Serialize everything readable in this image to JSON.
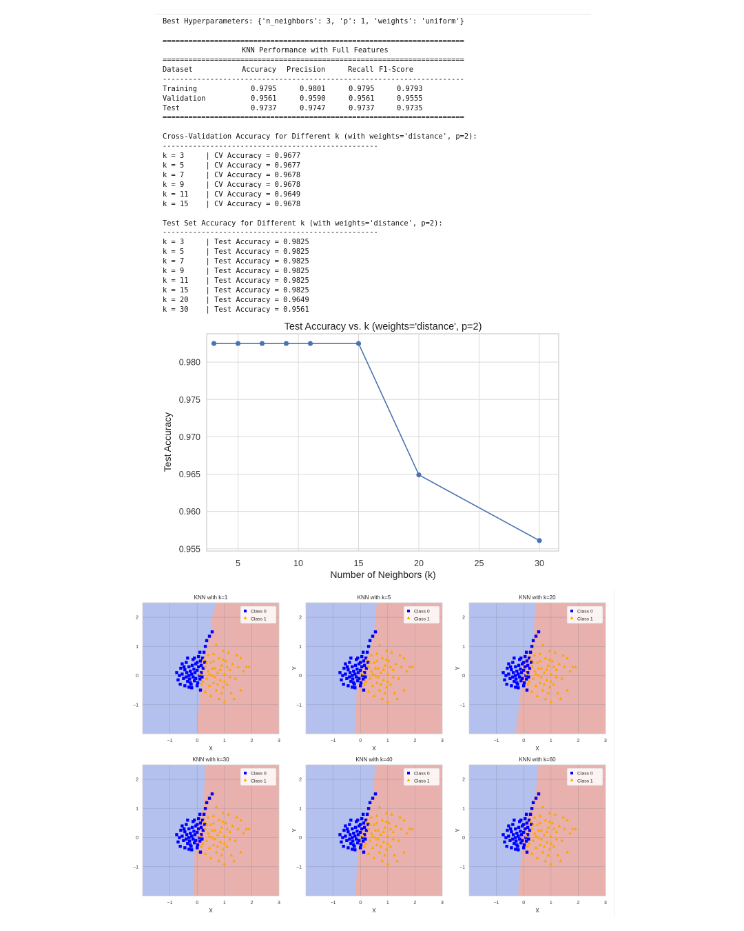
{
  "output": {
    "best_params_line": "Best Hyperparameters: {'n_neighbors': 3, 'p': 1, 'weights': 'uniform'}",
    "double_rule": "======================================================================",
    "single_rule": "----------------------------------------------------------------------",
    "short_rule": "--------------------------------------------------",
    "table_title": "KNN Performance with Full Features",
    "table_headers": [
      "Dataset",
      "Accuracy",
      "Precision",
      "Recall",
      "F1-Score"
    ],
    "table_rows": [
      [
        "Training",
        "0.9795",
        "0.9801",
        "0.9795",
        "0.9793"
      ],
      [
        "Validation",
        "0.9561",
        "0.9590",
        "0.9561",
        "0.9555"
      ],
      [
        "Test",
        "0.9737",
        "0.9747",
        "0.9737",
        "0.9735"
      ]
    ],
    "cv_title": "Cross-Validation Accuracy for Different k (with weights='distance', p=2):",
    "cv_lines": [
      "k = 3     | CV Accuracy = 0.9677",
      "k = 5     | CV Accuracy = 0.9677",
      "k = 7     | CV Accuracy = 0.9678",
      "k = 9     | CV Accuracy = 0.9678",
      "k = 11    | CV Accuracy = 0.9649",
      "k = 15    | CV Accuracy = 0.9678"
    ],
    "test_title": "Test Set Accuracy for Different k (with weights='distance', p=2):",
    "test_lines": [
      "k = 3     | Test Accuracy = 0.9825",
      "k = 5     | Test Accuracy = 0.9825",
      "k = 7     | Test Accuracy = 0.9825",
      "k = 9     | Test Accuracy = 0.9825",
      "k = 11    | Test Accuracy = 0.9825",
      "k = 15    | Test Accuracy = 0.9825",
      "k = 20    | Test Accuracy = 0.9649",
      "k = 30    | Test Accuracy = 0.9561"
    ]
  },
  "chart_data": [
    {
      "type": "line",
      "title": "Test Accuracy vs. k (weights='distance', p=2)",
      "xlabel": "Number of Neighbors (k)",
      "ylabel": "Test Accuracy",
      "x": [
        3,
        5,
        7,
        9,
        11,
        15,
        20,
        30
      ],
      "y": [
        0.9825,
        0.9825,
        0.9825,
        0.9825,
        0.9825,
        0.9825,
        0.9649,
        0.9561
      ],
      "xticks": [
        5,
        10,
        15,
        20,
        25,
        30
      ],
      "yticks": [
        0.955,
        0.96,
        0.965,
        0.97,
        0.975,
        0.98
      ],
      "ytick_labels": [
        "0.955",
        "0.960",
        "0.965",
        "0.970",
        "0.975",
        "0.980"
      ],
      "xlim": [
        2.4,
        31.6
      ],
      "ylim": [
        0.9547,
        0.9838
      ],
      "grid": true,
      "color": "#4c72b0"
    },
    {
      "type": "scatter",
      "subplots": [
        {
          "title": "KNN with k=1",
          "boundary": [
            [
              2.5,
              0.7
            ],
            [
              2.0,
              0.55
            ],
            [
              1.5,
              0.5
            ],
            [
              1.1,
              0.38
            ],
            [
              0.8,
              0.3
            ],
            [
              0.5,
              0.12
            ],
            [
              0.2,
              0.15
            ],
            [
              -0.2,
              0.2
            ],
            [
              -0.6,
              0.1
            ],
            [
              -1.0,
              0.08
            ],
            [
              -1.4,
              0.02
            ],
            [
              -1.9,
              0.0
            ]
          ]
        },
        {
          "title": "KNN with k=5",
          "boundary": [
            [
              2.5,
              0.6
            ],
            [
              2.0,
              0.55
            ],
            [
              1.5,
              0.5
            ],
            [
              1.1,
              0.4
            ],
            [
              0.8,
              0.33
            ],
            [
              0.5,
              0.15
            ],
            [
              0.2,
              0.0
            ],
            [
              -0.2,
              -0.05
            ],
            [
              -0.6,
              -0.15
            ],
            [
              -1.0,
              -0.15
            ],
            [
              -1.4,
              -0.2
            ],
            [
              -1.9,
              -0.2
            ]
          ]
        },
        {
          "title": "KNN with k=20",
          "boundary": [
            [
              2.5,
              0.45
            ],
            [
              2.0,
              0.4
            ],
            [
              1.5,
              0.38
            ],
            [
              1.1,
              0.3
            ],
            [
              0.8,
              0.2
            ],
            [
              0.5,
              0.0
            ],
            [
              0.2,
              -0.1
            ],
            [
              -0.2,
              -0.08
            ],
            [
              -0.6,
              -0.12
            ],
            [
              -1.0,
              -0.15
            ],
            [
              -1.4,
              -0.22
            ],
            [
              -1.9,
              -0.28
            ]
          ]
        },
        {
          "title": "KNN with k=30",
          "boundary": [
            [
              2.5,
              0.3
            ],
            [
              2.0,
              0.28
            ],
            [
              1.5,
              0.25
            ],
            [
              1.1,
              0.22
            ],
            [
              0.8,
              0.15
            ],
            [
              0.5,
              0.05
            ],
            [
              0.2,
              0.0
            ],
            [
              -0.2,
              -0.05
            ],
            [
              -0.6,
              -0.1
            ],
            [
              -1.0,
              -0.1
            ],
            [
              -1.4,
              -0.12
            ],
            [
              -1.9,
              -0.15
            ]
          ]
        },
        {
          "title": "KNN with k=40",
          "boundary": [
            [
              2.5,
              0.55
            ],
            [
              2.0,
              0.5
            ],
            [
              1.5,
              0.45
            ],
            [
              1.1,
              0.35
            ],
            [
              0.8,
              0.25
            ],
            [
              0.5,
              0.1
            ],
            [
              0.2,
              0.0
            ],
            [
              -0.2,
              -0.05
            ],
            [
              -0.6,
              -0.1
            ],
            [
              -1.0,
              -0.12
            ],
            [
              -1.4,
              -0.15
            ],
            [
              -1.9,
              -0.18
            ]
          ]
        },
        {
          "title": "KNN with k=60",
          "boundary": [
            [
              2.5,
              0.55
            ],
            [
              2.0,
              0.5
            ],
            [
              1.5,
              0.42
            ],
            [
              1.1,
              0.3
            ],
            [
              0.8,
              0.2
            ],
            [
              0.5,
              0.05
            ],
            [
              0.2,
              -0.05
            ],
            [
              -0.2,
              -0.08
            ],
            [
              -0.6,
              -0.1
            ],
            [
              -1.0,
              -0.12
            ],
            [
              -1.4,
              -0.15
            ],
            [
              -1.9,
              -0.2
            ]
          ]
        }
      ],
      "xlabel": "X",
      "ylabel": "Y",
      "xlim": [
        -2.0,
        3.0
      ],
      "ylim": [
        -2.0,
        2.5
      ],
      "xticks": [
        -1,
        0,
        1,
        2,
        3
      ],
      "yticks": [
        -1,
        0,
        1,
        2
      ],
      "legend": [
        "Class 0",
        "Class 1"
      ],
      "legend_placement": "top-right",
      "class_colors": {
        "class0": "#0000ff",
        "class1": "#ffa500"
      },
      "region_colors": {
        "class0": "#b4c0ee",
        "class1": "#e8b1ad"
      },
      "class0_points": [
        [
          -0.55,
          0.05
        ],
        [
          -0.5,
          -0.1
        ],
        [
          -0.45,
          0.2
        ],
        [
          -0.4,
          -0.05
        ],
        [
          -0.38,
          0.1
        ],
        [
          -0.35,
          -0.2
        ],
        [
          -0.3,
          0.3
        ],
        [
          -0.3,
          0.0
        ],
        [
          -0.28,
          -0.12
        ],
        [
          -0.25,
          0.15
        ],
        [
          -0.22,
          -0.3
        ],
        [
          -0.2,
          0.05
        ],
        [
          -0.18,
          0.35
        ],
        [
          -0.15,
          -0.05
        ],
        [
          -0.12,
          0.22
        ],
        [
          -0.1,
          -0.18
        ],
        [
          -0.08,
          0.1
        ],
        [
          -0.05,
          0.4
        ],
        [
          -0.05,
          -0.1
        ],
        [
          0.0,
          0.18
        ],
        [
          0.02,
          -0.25
        ],
        [
          0.05,
          0.3
        ],
        [
          0.08,
          0.0
        ],
        [
          0.1,
          -0.12
        ],
        [
          0.12,
          0.5
        ],
        [
          0.15,
          0.1
        ],
        [
          0.18,
          -0.05
        ],
        [
          0.2,
          0.6
        ],
        [
          0.22,
          0.25
        ],
        [
          0.25,
          0.8
        ],
        [
          0.3,
          1.0
        ],
        [
          0.35,
          1.2
        ],
        [
          0.45,
          1.35
        ],
        [
          0.55,
          1.5
        ],
        [
          -0.65,
          0.0
        ],
        [
          -0.7,
          -0.15
        ],
        [
          -0.6,
          0.25
        ],
        [
          -0.62,
          -0.3
        ],
        [
          -0.4,
          0.45
        ],
        [
          -0.3,
          -0.4
        ],
        [
          -0.15,
          0.55
        ],
        [
          0.0,
          -0.35
        ],
        [
          0.05,
          0.65
        ],
        [
          -0.45,
          -0.35
        ],
        [
          -0.55,
          0.4
        ],
        [
          -0.75,
          0.1
        ],
        [
          0.15,
          0.35
        ],
        [
          -0.2,
          -0.42
        ],
        [
          0.12,
          -0.5
        ],
        [
          -0.1,
          0.6
        ],
        [
          0.28,
          0.45
        ],
        [
          0.1,
          0.8
        ],
        [
          -0.35,
          0.6
        ],
        [
          0.0,
          0.45
        ],
        [
          -0.25,
          -0.25
        ],
        [
          -0.48,
          0.3
        ]
      ],
      "class1_points": [
        [
          0.1,
          0.05
        ],
        [
          0.2,
          -0.2
        ],
        [
          0.3,
          0.3
        ],
        [
          0.35,
          -0.1
        ],
        [
          0.4,
          0.15
        ],
        [
          0.45,
          -0.35
        ],
        [
          0.5,
          0.45
        ],
        [
          0.55,
          0.0
        ],
        [
          0.6,
          -0.25
        ],
        [
          0.65,
          0.25
        ],
        [
          0.7,
          -0.5
        ],
        [
          0.75,
          0.1
        ],
        [
          0.8,
          0.6
        ],
        [
          0.85,
          -0.15
        ],
        [
          0.9,
          0.35
        ],
        [
          0.95,
          -0.4
        ],
        [
          1.0,
          0.05
        ],
        [
          1.05,
          0.5
        ],
        [
          1.1,
          -0.3
        ],
        [
          1.2,
          0.2
        ],
        [
          1.25,
          -0.6
        ],
        [
          1.3,
          0.4
        ],
        [
          1.4,
          -0.1
        ],
        [
          1.5,
          0.3
        ],
        [
          1.6,
          -0.5
        ],
        [
          1.7,
          0.15
        ],
        [
          1.8,
          0.3
        ],
        [
          1.9,
          0.3
        ],
        [
          0.25,
          0.55
        ],
        [
          0.4,
          0.7
        ],
        [
          0.6,
          0.75
        ],
        [
          0.3,
          -0.55
        ],
        [
          0.5,
          -0.7
        ],
        [
          0.8,
          -0.8
        ],
        [
          1.0,
          -0.9
        ],
        [
          1.15,
          0.8
        ],
        [
          0.7,
          1.05
        ],
        [
          0.95,
          0.85
        ],
        [
          1.35,
          -0.8
        ],
        [
          1.45,
          0.7
        ],
        [
          0.55,
          0.25
        ],
        [
          0.65,
          -0.05
        ],
        [
          0.45,
          0.05
        ],
        [
          0.85,
          0.2
        ],
        [
          1.0,
          -0.2
        ],
        [
          0.75,
          -0.3
        ],
        [
          0.35,
          0.45
        ],
        [
          0.95,
          0.55
        ],
        [
          1.6,
          0.6
        ],
        [
          1.2,
          -0.05
        ],
        [
          0.15,
          -0.3
        ],
        [
          0.6,
          0.5
        ],
        [
          1.1,
          0.3
        ],
        [
          0.9,
          -0.6
        ]
      ]
    }
  ]
}
